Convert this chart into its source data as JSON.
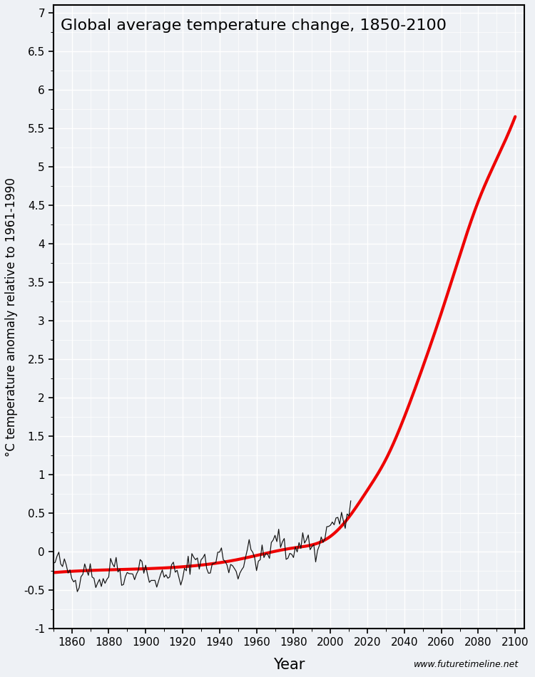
{
  "title": "Global average temperature change, 1850-2100",
  "xlabel": "Year",
  "ylabel": "°C temperature anomaly relative to 1961-1990",
  "website": "www.futuretimeline.net",
  "xlim": [
    1850,
    2105
  ],
  "ylim": [
    -1.0,
    7.1
  ],
  "xticks": [
    1860,
    1880,
    1900,
    1920,
    1940,
    1960,
    1980,
    2000,
    2020,
    2040,
    2060,
    2080,
    2100
  ],
  "yticks": [
    -1.0,
    -0.5,
    0,
    0.5,
    1.0,
    1.5,
    2.0,
    2.5,
    3.0,
    3.5,
    4.0,
    4.5,
    5.0,
    5.5,
    6.0,
    6.5,
    7.0
  ],
  "background_color": "#eef1f5",
  "grid_color": "#ffffff",
  "outer_bg": "#eef1f5",
  "historical_color": "#111111",
  "projection_color": "#ee0000",
  "title_fontsize": 16,
  "label_fontsize": 12,
  "tick_fontsize": 11,
  "website_fontsize": 9,
  "red_keypoints": [
    [
      1850,
      -0.27
    ],
    [
      1900,
      -0.22
    ],
    [
      1950,
      -0.1
    ],
    [
      1980,
      0.05
    ],
    [
      2000,
      0.2
    ],
    [
      2010,
      0.45
    ],
    [
      2020,
      0.8
    ],
    [
      2030,
      1.2
    ],
    [
      2040,
      1.75
    ],
    [
      2050,
      2.4
    ],
    [
      2060,
      3.1
    ],
    [
      2070,
      3.85
    ],
    [
      2080,
      4.55
    ],
    [
      2090,
      5.1
    ],
    [
      2100,
      5.65
    ]
  ],
  "hist_seed": 42,
  "hist_base_points": [
    [
      1850,
      -0.27
    ],
    [
      1870,
      -0.25
    ],
    [
      1890,
      -0.3
    ],
    [
      1910,
      -0.28
    ],
    [
      1930,
      -0.18
    ],
    [
      1950,
      -0.1
    ],
    [
      1960,
      -0.05
    ],
    [
      1970,
      0.0
    ],
    [
      1980,
      0.05
    ],
    [
      1990,
      0.15
    ],
    [
      2000,
      0.28
    ],
    [
      2010,
      0.52
    ]
  ]
}
